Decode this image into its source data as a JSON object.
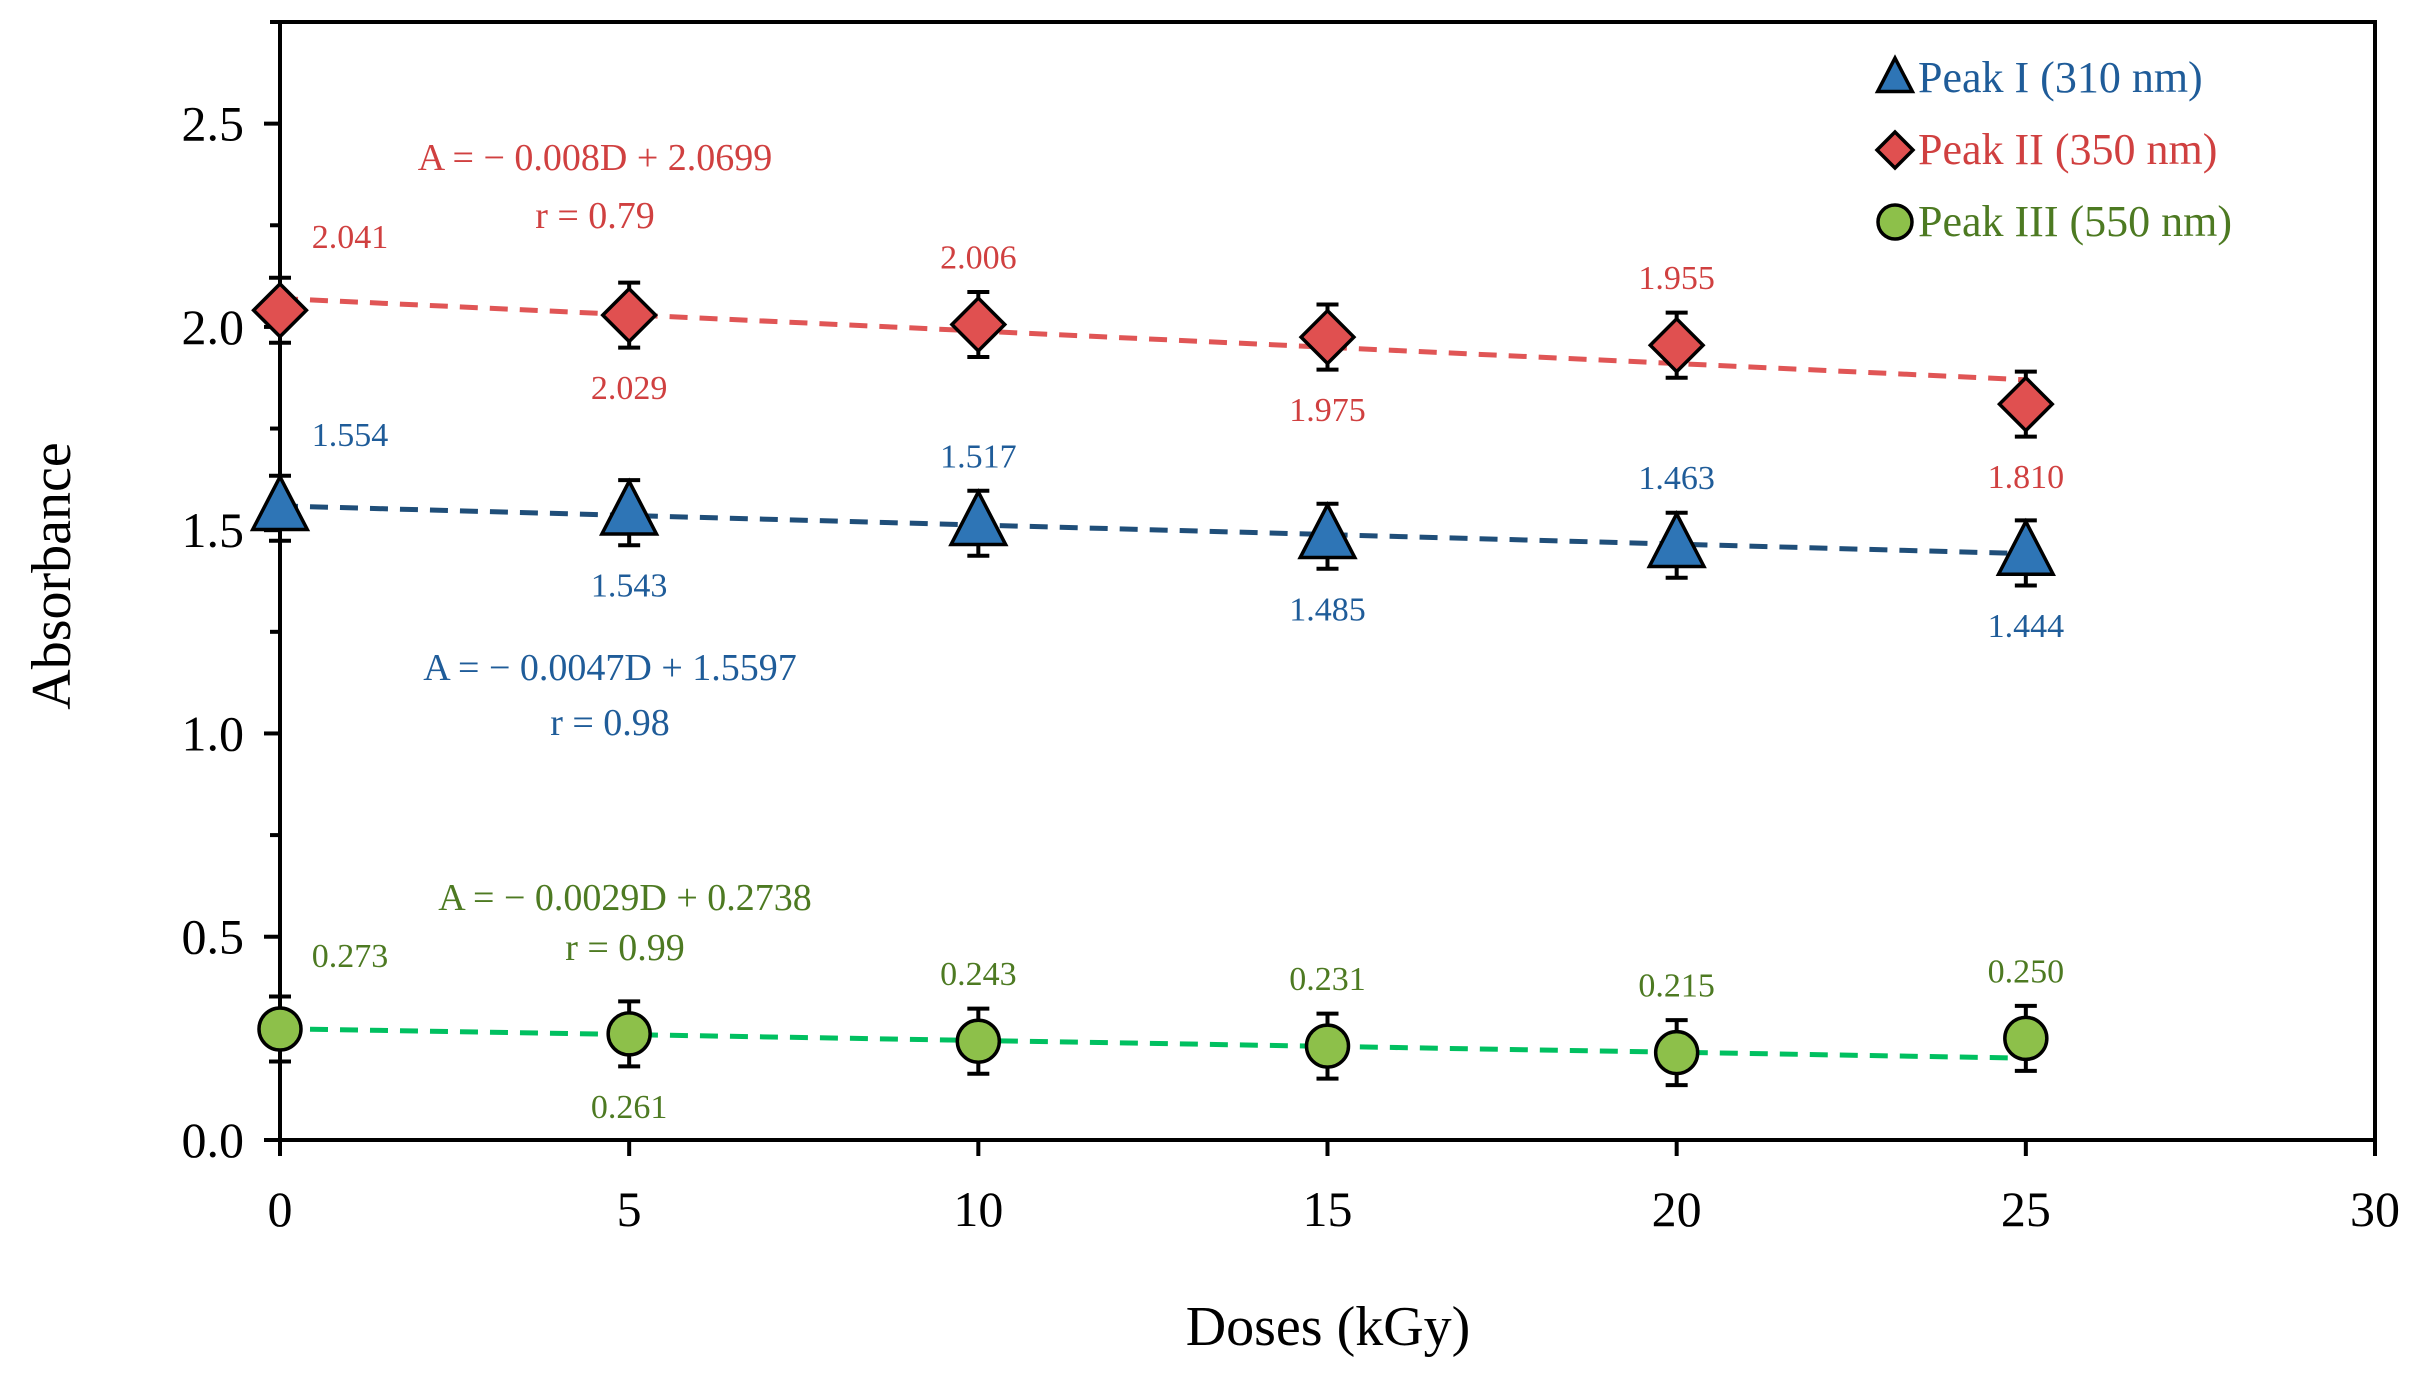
{
  "chart_data": {
    "type": "scatter",
    "title": "",
    "xlabel": "Doses (kGy)",
    "ylabel": "Absorbance",
    "xlim": [
      0,
      30
    ],
    "ylim": [
      0,
      2.75
    ],
    "x_ticks": [
      0,
      5,
      10,
      15,
      20,
      25,
      30
    ],
    "x_tick_labels": [
      "0",
      "5",
      "10",
      "15",
      "20",
      "25",
      "30"
    ],
    "y_ticks": [
      0,
      0.5,
      1,
      1.5,
      2,
      2.5
    ],
    "y_tick_labels": [
      "0.0",
      "0.5",
      "1.0",
      "1.5",
      "2.0",
      "2.5"
    ],
    "grid": false,
    "legend_position": "top-right",
    "series": [
      {
        "name": "Peak I (310 nm)",
        "marker": "triangle",
        "color": "#2e75b6",
        "label_color": "#1f5c99",
        "line_color": "#1f4e79",
        "x": [
          0,
          5,
          10,
          15,
          20,
          25
        ],
        "values": [
          1.554,
          1.543,
          1.517,
          1.485,
          1.463,
          1.444
        ],
        "labels": [
          "1.554",
          "1.543",
          "1.517",
          "1.485",
          "1.463",
          "1.444"
        ],
        "label_side": [
          "above",
          "below",
          "above",
          "below",
          "above",
          "below"
        ],
        "error": 0.08,
        "fit": {
          "slope": -0.0047,
          "intercept": 1.5597
        },
        "equation": "A = − 0.0047D + 1.5597",
        "r_text": "r = 0.98"
      },
      {
        "name": "Peak II (350 nm)",
        "marker": "diamond",
        "color": "#e05050",
        "label_color": "#d04040",
        "line_color": "#e05555",
        "x": [
          0,
          5,
          10,
          15,
          20,
          25
        ],
        "values": [
          2.041,
          2.029,
          2.006,
          1.975,
          1.955,
          1.81
        ],
        "labels": [
          "2.041",
          "2.029",
          "2.006",
          "1.975",
          "1.955",
          "1.810"
        ],
        "label_side": [
          "above",
          "below",
          "above",
          "below",
          "above",
          "below"
        ],
        "error": 0.08,
        "fit": {
          "slope": -0.008,
          "intercept": 2.0699
        },
        "equation": "A = − 0.008D + 2.0699",
        "r_text": "r = 0.79"
      },
      {
        "name": "Peak III (550 nm)",
        "marker": "circle",
        "color": "#8dc04a",
        "label_color": "#4d7a22",
        "line_color": "#00c060",
        "x": [
          0,
          5,
          10,
          15,
          20,
          25
        ],
        "values": [
          0.273,
          0.261,
          0.243,
          0.231,
          0.215,
          0.25
        ],
        "labels": [
          "0.273",
          "0.261",
          "0.243",
          "0.231",
          "0.215",
          "0.250"
        ],
        "label_side": [
          "above",
          "below",
          "above",
          "above",
          "above",
          "above"
        ],
        "error": 0.08,
        "fit": {
          "slope": -0.0029,
          "intercept": 0.2738
        },
        "equation": "A = − 0.0029D + 0.2738",
        "r_text": "r = 0.99"
      }
    ]
  }
}
